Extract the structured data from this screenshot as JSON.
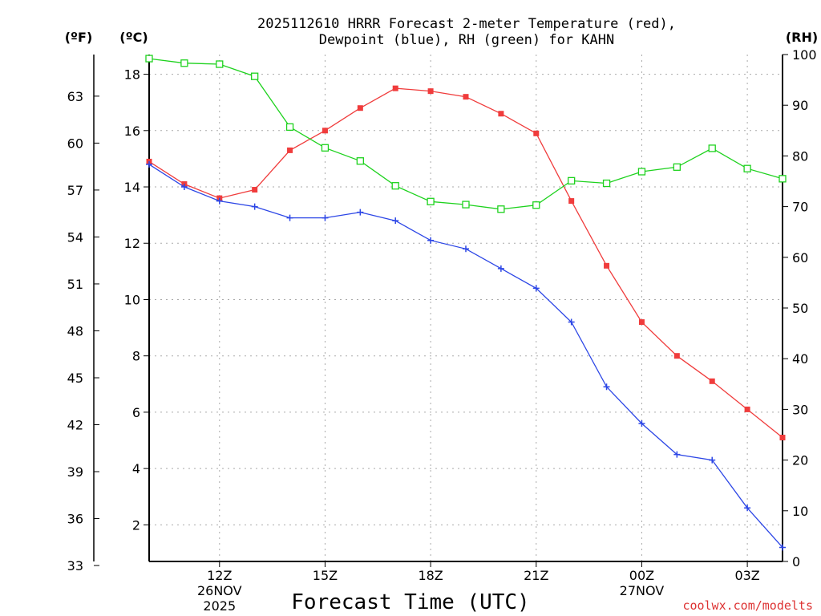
{
  "chart_data": {
    "type": "line",
    "title_line1": "2025112610 HRRR Forecast 2-meter Temperature (red),",
    "title_line2": "Dewpoint (blue), RH (green) for KAHN",
    "unit_f": "(ºF)",
    "unit_c": "(ºC)",
    "unit_rh": "(RH)",
    "xlabel": "Forecast Time (UTC)",
    "credit": "coolwx.com/modelts",
    "x_hours": [
      10,
      11,
      12,
      13,
      14,
      15,
      16,
      17,
      18,
      19,
      20,
      21,
      22,
      23,
      24,
      25,
      26,
      27,
      28
    ],
    "xlim": [
      10,
      28
    ],
    "ylim_c": [
      0.7,
      18.7
    ],
    "ylim_rh": [
      0,
      100
    ],
    "yticks_c": [
      2,
      4,
      6,
      8,
      10,
      12,
      14,
      16,
      18
    ],
    "yticks_f": [
      33,
      36,
      39,
      42,
      45,
      48,
      51,
      54,
      57,
      60,
      63
    ],
    "yticks_rh": [
      0,
      10,
      20,
      30,
      40,
      50,
      60,
      70,
      80,
      90,
      100
    ],
    "xticks": [
      {
        "hour": 12,
        "label": "12Z",
        "date": "26NOV",
        "year": "2025"
      },
      {
        "hour": 15,
        "label": "15Z",
        "date": "",
        "year": ""
      },
      {
        "hour": 18,
        "label": "18Z",
        "date": "",
        "year": ""
      },
      {
        "hour": 21,
        "label": "21Z",
        "date": "",
        "year": ""
      },
      {
        "hour": 24,
        "label": "00Z",
        "date": "27NOV",
        "year": ""
      },
      {
        "hour": 27,
        "label": "03Z",
        "date": "",
        "year": ""
      }
    ],
    "series": [
      {
        "name": "Temperature",
        "units": "C",
        "color": "#f03c3c",
        "marker": "filled-square",
        "values": [
          14.9,
          14.1,
          13.6,
          13.9,
          15.3,
          16.0,
          16.8,
          17.5,
          17.4,
          17.2,
          16.6,
          15.9,
          13.5,
          11.2,
          9.2,
          8.0,
          7.1,
          6.1,
          5.1
        ]
      },
      {
        "name": "Dewpoint",
        "units": "C",
        "color": "#2c46e6",
        "marker": "plus",
        "values": [
          14.8,
          14.0,
          13.5,
          13.3,
          12.9,
          12.9,
          13.1,
          12.8,
          12.1,
          11.8,
          11.1,
          10.4,
          9.2,
          6.9,
          5.6,
          4.5,
          4.3,
          2.6,
          1.2
        ]
      },
      {
        "name": "RH",
        "units": "%",
        "color": "#1ed21e",
        "marker": "open-square",
        "values": [
          99.2,
          98.3,
          98.1,
          95.7,
          85.7,
          81.6,
          79.0,
          74.1,
          71.0,
          70.4,
          69.5,
          70.3,
          75.1,
          74.6,
          76.9,
          77.8,
          81.5,
          77.5,
          75.5
        ]
      }
    ]
  }
}
